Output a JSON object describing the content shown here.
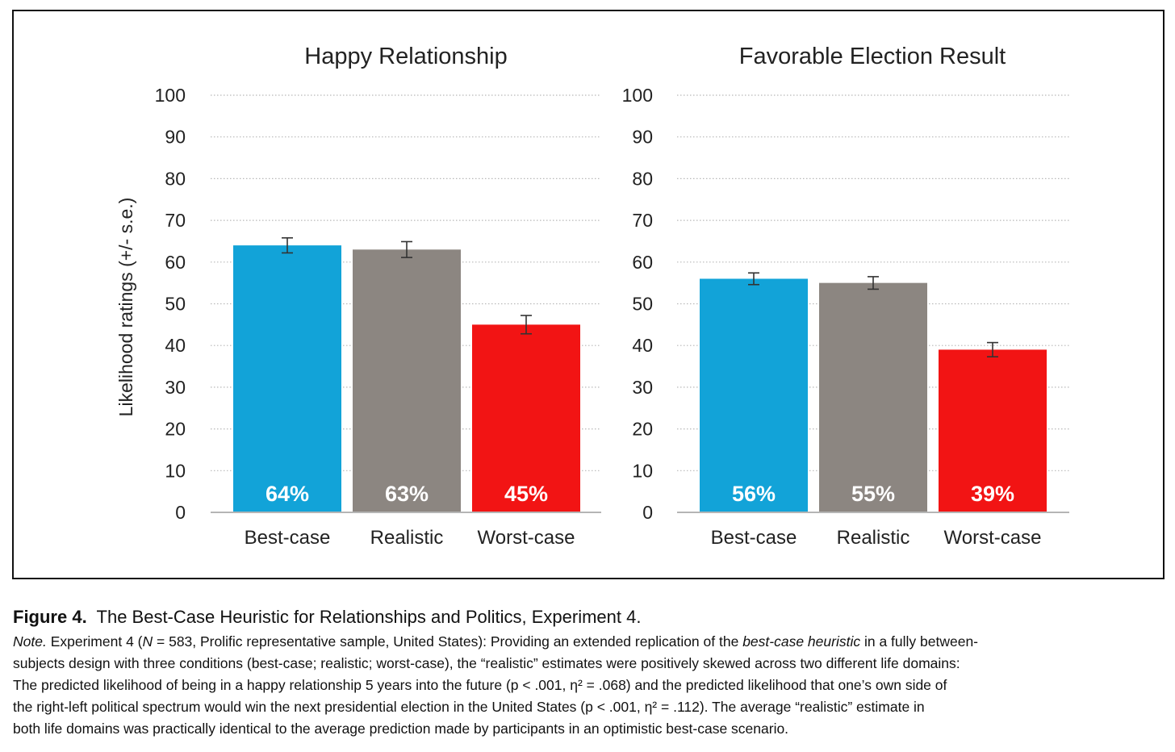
{
  "chart_data": [
    {
      "type": "bar",
      "title": "Happy Relationship",
      "ylabel": "Likelihood ratings (+/- s.e.)",
      "ylim": [
        0,
        100
      ],
      "yticks": [
        0,
        10,
        20,
        30,
        40,
        50,
        60,
        70,
        80,
        90,
        100
      ],
      "grid": true,
      "categories": [
        "Best-case",
        "Realistic",
        "Worst-case"
      ],
      "values": [
        64,
        63,
        45
      ],
      "error": [
        1.8,
        1.9,
        2.2
      ],
      "labels": [
        "64%",
        "63%",
        "45%"
      ],
      "colors": [
        "#12a3d8",
        "#8c8681",
        "#f21414"
      ]
    },
    {
      "type": "bar",
      "title": "Favorable Election Result",
      "ylabel": "",
      "ylim": [
        0,
        100
      ],
      "yticks": [
        0,
        10,
        20,
        30,
        40,
        50,
        60,
        70,
        80,
        90,
        100
      ],
      "grid": true,
      "categories": [
        "Best-case",
        "Realistic",
        "Worst-case"
      ],
      "values": [
        56,
        55,
        39
      ],
      "error": [
        1.4,
        1.5,
        1.7
      ],
      "labels": [
        "56%",
        "55%",
        "39%"
      ],
      "colors": [
        "#12a3d8",
        "#8c8681",
        "#f21414"
      ]
    }
  ],
  "caption": {
    "figure_label": "Figure 4.",
    "figure_title": "The Best-Case Heuristic for Relationships and Politics, Experiment 4.",
    "note_label": "Note.",
    "line1_a": "Experiment 4 (",
    "line1_n": "N",
    "line1_b": " = 583, Prolific representative sample, United States): Providing an extended replication of the ",
    "line1_term": "best-case heuristic",
    "line1_c": " in a fully between-",
    "line2": "subjects design with three conditions (best-case; realistic; worst-case), the “realistic” estimates were positively skewed across two different life domains:",
    "line3": "The predicted likelihood of being in a happy relationship 5 years into the future (p < .001, η² = .068) and the predicted likelihood that one’s own side of",
    "line4": "the right-left political spectrum would win the next presidential election in the United States (p < .001, η² = .112).  The average “realistic” estimate in",
    "line5": "both life domains was practically identical to the average prediction made by participants in an optimistic best-case scenario."
  }
}
